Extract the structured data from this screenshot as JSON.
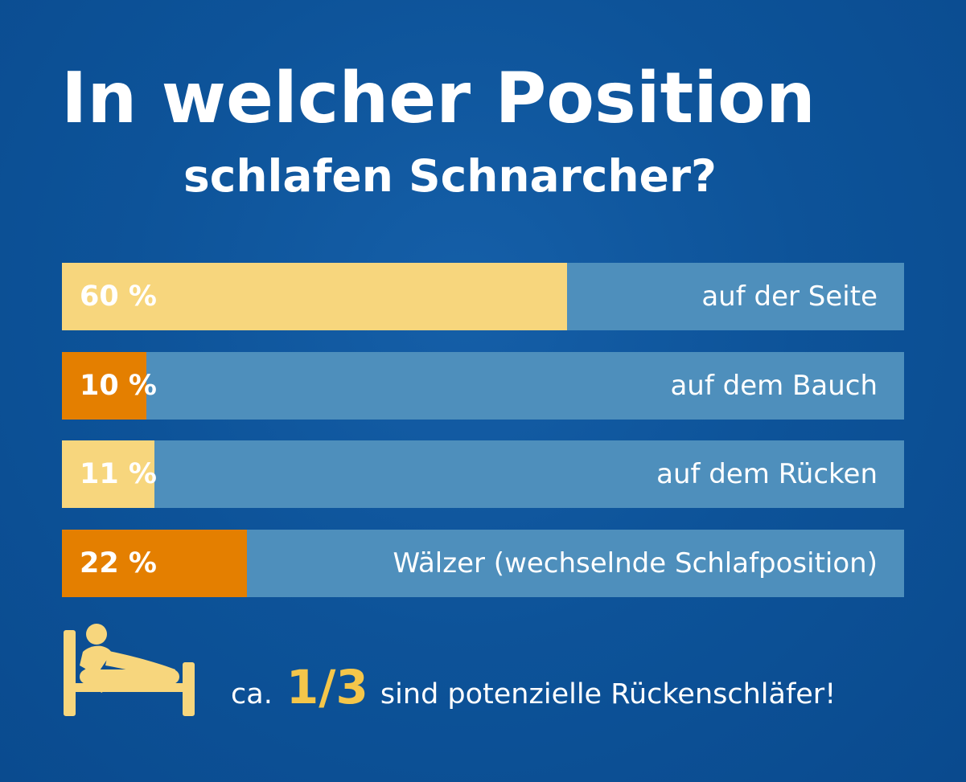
{
  "title": {
    "line1": "In welcher Position",
    "line2": "schlafen Schnarcher?"
  },
  "colors": {
    "background": "#0b4f95",
    "bar_track": "#4e8fbc",
    "yellow": "#f7d67d",
    "orange": "#e47f00",
    "footer_highlight": "#f4c64a",
    "text": "#ffffff"
  },
  "icon": {
    "name": "bed-person-icon"
  },
  "chart_data": {
    "type": "bar",
    "title": "In welcher Position schlafen Schnarcher?",
    "categories": [
      "auf der Seite",
      "auf dem Bauch",
      "auf dem Rücken",
      "Wälzer (wechselnde Schlafposition)"
    ],
    "values": [
      60,
      10,
      11,
      22
    ],
    "value_labels": [
      "60 %",
      "10 %",
      "11 %",
      "22 %"
    ],
    "fill_colors": [
      "#f7d67d",
      "#e47f00",
      "#f7d67d",
      "#e47f00"
    ],
    "xlim": [
      0,
      100
    ],
    "orientation": "horizontal"
  },
  "footer": {
    "prefix": "ca.",
    "fraction": "1/3",
    "suffix": "sind potenzielle Rückenschläfer!"
  }
}
